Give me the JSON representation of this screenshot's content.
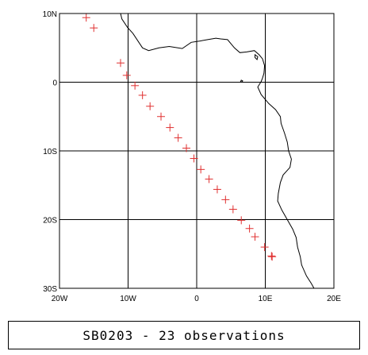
{
  "caption": "SB0203 - 23 observations",
  "map": {
    "lon_range": [
      -20,
      20
    ],
    "lat_range": [
      -30,
      10
    ],
    "gridlines": true,
    "x_ticks": [
      {
        "lon": -20,
        "label": "20W"
      },
      {
        "lon": -10,
        "label": "10W"
      },
      {
        "lon": 0,
        "label": "0"
      },
      {
        "lon": 10,
        "label": "10E"
      },
      {
        "lon": 20,
        "label": "20E"
      }
    ],
    "y_ticks": [
      {
        "lat": 10,
        "label": "10N"
      },
      {
        "lat": 0,
        "label": "0"
      },
      {
        "lat": -10,
        "label": "10S"
      },
      {
        "lat": -20,
        "label": "20S"
      },
      {
        "lat": -30,
        "label": "30S"
      }
    ],
    "marker_color": "#e03030",
    "coast_color": "#000000",
    "coastline": [
      [
        -11.1,
        10.0
      ],
      [
        -10.9,
        9.2
      ],
      [
        -10.1,
        8.0
      ],
      [
        -9.3,
        7.1
      ],
      [
        -7.9,
        5.0
      ],
      [
        -7.0,
        4.6
      ],
      [
        -5.5,
        5.0
      ],
      [
        -4.0,
        5.2
      ],
      [
        -2.1,
        4.9
      ],
      [
        -0.8,
        5.8
      ],
      [
        0.5,
        6.0
      ],
      [
        1.6,
        6.2
      ],
      [
        2.8,
        6.4
      ],
      [
        3.5,
        6.3
      ],
      [
        4.5,
        6.2
      ],
      [
        5.5,
        5.0
      ],
      [
        6.3,
        4.3
      ],
      [
        7.3,
        4.4
      ],
      [
        8.4,
        4.6
      ],
      [
        9.1,
        4.0
      ],
      [
        9.6,
        3.4
      ],
      [
        9.9,
        2.4
      ],
      [
        9.8,
        1.3
      ],
      [
        9.6,
        0.6
      ],
      [
        9.4,
        0.1
      ],
      [
        8.9,
        -0.7
      ],
      [
        9.4,
        -1.8
      ],
      [
        10.5,
        -3.1
      ],
      [
        11.5,
        -4.0
      ],
      [
        12.2,
        -5.0
      ],
      [
        12.3,
        -6.0
      ],
      [
        12.8,
        -7.4
      ],
      [
        13.2,
        -8.7
      ],
      [
        13.4,
        -10.0
      ],
      [
        13.8,
        -11.2
      ],
      [
        13.6,
        -12.4
      ],
      [
        12.6,
        -13.5
      ],
      [
        12.2,
        -14.6
      ],
      [
        11.9,
        -16.2
      ],
      [
        11.8,
        -17.3
      ],
      [
        12.4,
        -18.6
      ],
      [
        13.2,
        -20.0
      ],
      [
        14.0,
        -21.4
      ],
      [
        14.5,
        -22.6
      ],
      [
        14.7,
        -24.0
      ],
      [
        15.1,
        -25.4
      ],
      [
        15.3,
        -26.6
      ],
      [
        16.0,
        -28.2
      ],
      [
        16.7,
        -29.3
      ],
      [
        17.1,
        -30.0
      ]
    ],
    "islands": [
      [
        [
          8.5,
          4.0
        ],
        [
          8.9,
          3.7
        ],
        [
          8.8,
          3.3
        ],
        [
          8.5,
          3.6
        ]
      ],
      [
        [
          6.5,
          0.3
        ],
        [
          6.7,
          0.2
        ],
        [
          6.6,
          0.0
        ],
        [
          6.4,
          0.1
        ]
      ]
    ],
    "observations": [
      [
        -16.1,
        9.4
      ],
      [
        -15.0,
        7.9
      ],
      [
        -11.1,
        2.8
      ],
      [
        -10.2,
        1.0
      ],
      [
        -9.0,
        -0.5
      ],
      [
        -7.9,
        -1.9
      ],
      [
        -6.8,
        -3.5
      ],
      [
        -5.2,
        -5.0
      ],
      [
        -3.9,
        -6.6
      ],
      [
        -2.7,
        -8.1
      ],
      [
        -1.5,
        -9.6
      ],
      [
        -0.4,
        -11.1
      ],
      [
        0.6,
        -12.7
      ],
      [
        1.8,
        -14.1
      ],
      [
        3.0,
        -15.6
      ],
      [
        4.2,
        -17.1
      ],
      [
        5.3,
        -18.5
      ],
      [
        6.5,
        -20.1
      ],
      [
        7.7,
        -21.3
      ],
      [
        8.5,
        -22.5
      ],
      [
        9.9,
        -24.0
      ],
      [
        10.9,
        -25.3
      ],
      [
        11.0,
        -25.4
      ]
    ]
  }
}
